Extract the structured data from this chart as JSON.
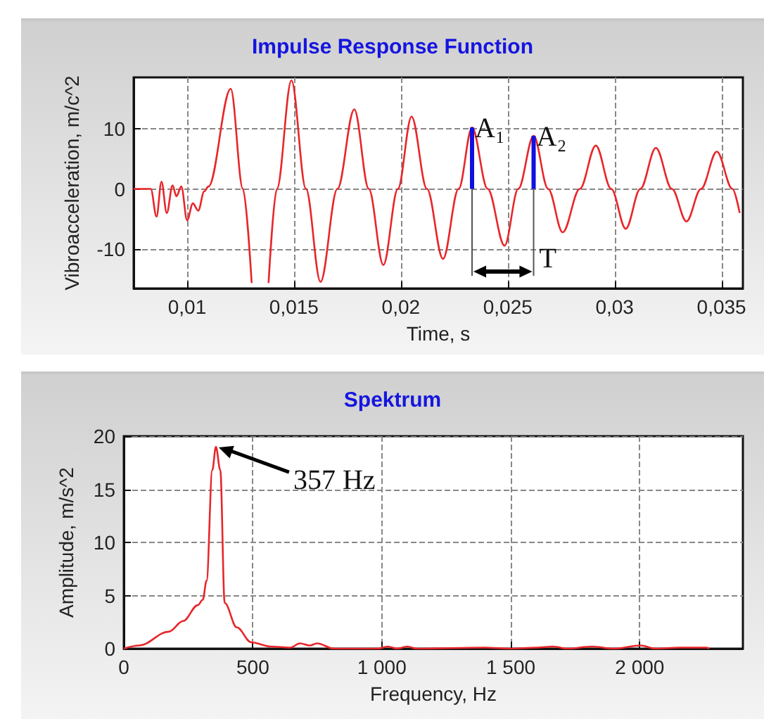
{
  "chart_data": [
    {
      "type": "line",
      "title": "Impulse Response Function",
      "xlabel": "Time, s",
      "ylabel": "Vibroacceleration, m/c^2",
      "x": [
        0.0075,
        0.0083,
        0.00857,
        0.0088,
        0.00905,
        0.00932,
        0.0095,
        0.00973,
        0.01,
        0.01027,
        0.01052,
        0.0108,
        0.011,
        0.01204,
        0.01261,
        0.01302,
        0.0134,
        0.01381,
        0.0142,
        0.01488,
        0.01556,
        0.01624,
        0.01703,
        0.01782,
        0.0185,
        0.01918,
        0.01986,
        0.0205,
        0.02122,
        0.02197,
        0.0227,
        0.02333,
        0.02406,
        0.02485,
        0.02549,
        0.02621,
        0.02689,
        0.02757,
        0.02837,
        0.02912,
        0.02984,
        0.03052,
        0.0312,
        0.03193,
        0.03268,
        0.03336,
        0.03404,
        0.03478,
        0.03551,
        0.03585
      ],
      "series": [
        {
          "color": "#e8262a",
          "values": [
            0,
            0,
            -4.6,
            1.2,
            -4,
            0.6,
            -1.2,
            0.4,
            -5.2,
            -2.4,
            -3.6,
            -0.4,
            0.4,
            16.6,
            0,
            -15.6,
            null,
            -15.6,
            0,
            18,
            0,
            -15.4,
            0,
            13.2,
            0,
            -12.6,
            0,
            12,
            0,
            -11.6,
            0,
            10.2,
            0,
            -9.4,
            0,
            8.8,
            0,
            -7.2,
            0,
            7.2,
            0,
            -6.6,
            0,
            6.8,
            0,
            -5.4,
            0,
            6.2,
            0,
            -4
          ]
        }
      ],
      "xlim": [
        0.0075,
        0.036
      ],
      "ylim": [
        -16.5,
        18.5
      ],
      "xticks": [
        {
          "value": 0.01,
          "label": "0,01"
        },
        {
          "value": 0.015,
          "label": "0,015"
        },
        {
          "value": 0.02,
          "label": "0,02"
        },
        {
          "value": 0.025,
          "label": "0,025"
        },
        {
          "value": 0.03,
          "label": "0,03"
        },
        {
          "value": 0.035,
          "label": "0,035"
        }
      ],
      "yticks": [
        -10,
        0,
        10
      ],
      "grid": true,
      "marker": "none",
      "annotations": [
        {
          "text": "A₁",
          "x": 0.02333,
          "y": 10.2
        },
        {
          "text": "A₂",
          "x": 0.02621,
          "y": 8.8
        },
        "T"
      ]
    },
    {
      "type": "line",
      "title": "Spektrum",
      "xlabel": "Frequency, Hz",
      "ylabel": "Amplitude, m/s^2",
      "x": [
        0,
        60,
        174,
        230,
        287,
        306,
        321,
        343,
        357,
        374,
        391,
        438,
        494,
        570,
        645,
        683,
        721,
        749,
        815,
        985,
        1023,
        1060,
        1098,
        1136,
        1400,
        1500,
        1600,
        1664,
        1720,
        1815,
        1900,
        2004,
        2061,
        2155,
        2259,
        2270
      ],
      "series": [
        {
          "color": "#e8262a",
          "values": [
            0,
            0.3,
            1.6,
            2.6,
            4.1,
            4.6,
            6.4,
            16.8,
            19,
            16.8,
            4.3,
            2,
            0.6,
            0.2,
            0.1,
            0.5,
            0.3,
            0.5,
            0,
            0,
            0.2,
            0,
            0.2,
            0,
            0.1,
            0,
            0.1,
            0.2,
            0,
            0.2,
            0,
            0.3,
            0,
            0.1,
            0.1,
            0
          ]
        }
      ],
      "xlim": [
        0,
        2400
      ],
      "ylim": [
        0,
        20
      ],
      "xticks": [
        0,
        500,
        {
          "value": 1000,
          "label": "1 000"
        },
        {
          "value": 1500,
          "label": "1 500"
        },
        {
          "value": 2000,
          "label": "2 000"
        }
      ],
      "yticks": [
        0,
        5,
        10,
        15,
        20
      ],
      "grid": true,
      "marker": "none",
      "annotations": [
        {
          "text": "357 Hz",
          "x": 357,
          "y": 19
        }
      ]
    }
  ]
}
